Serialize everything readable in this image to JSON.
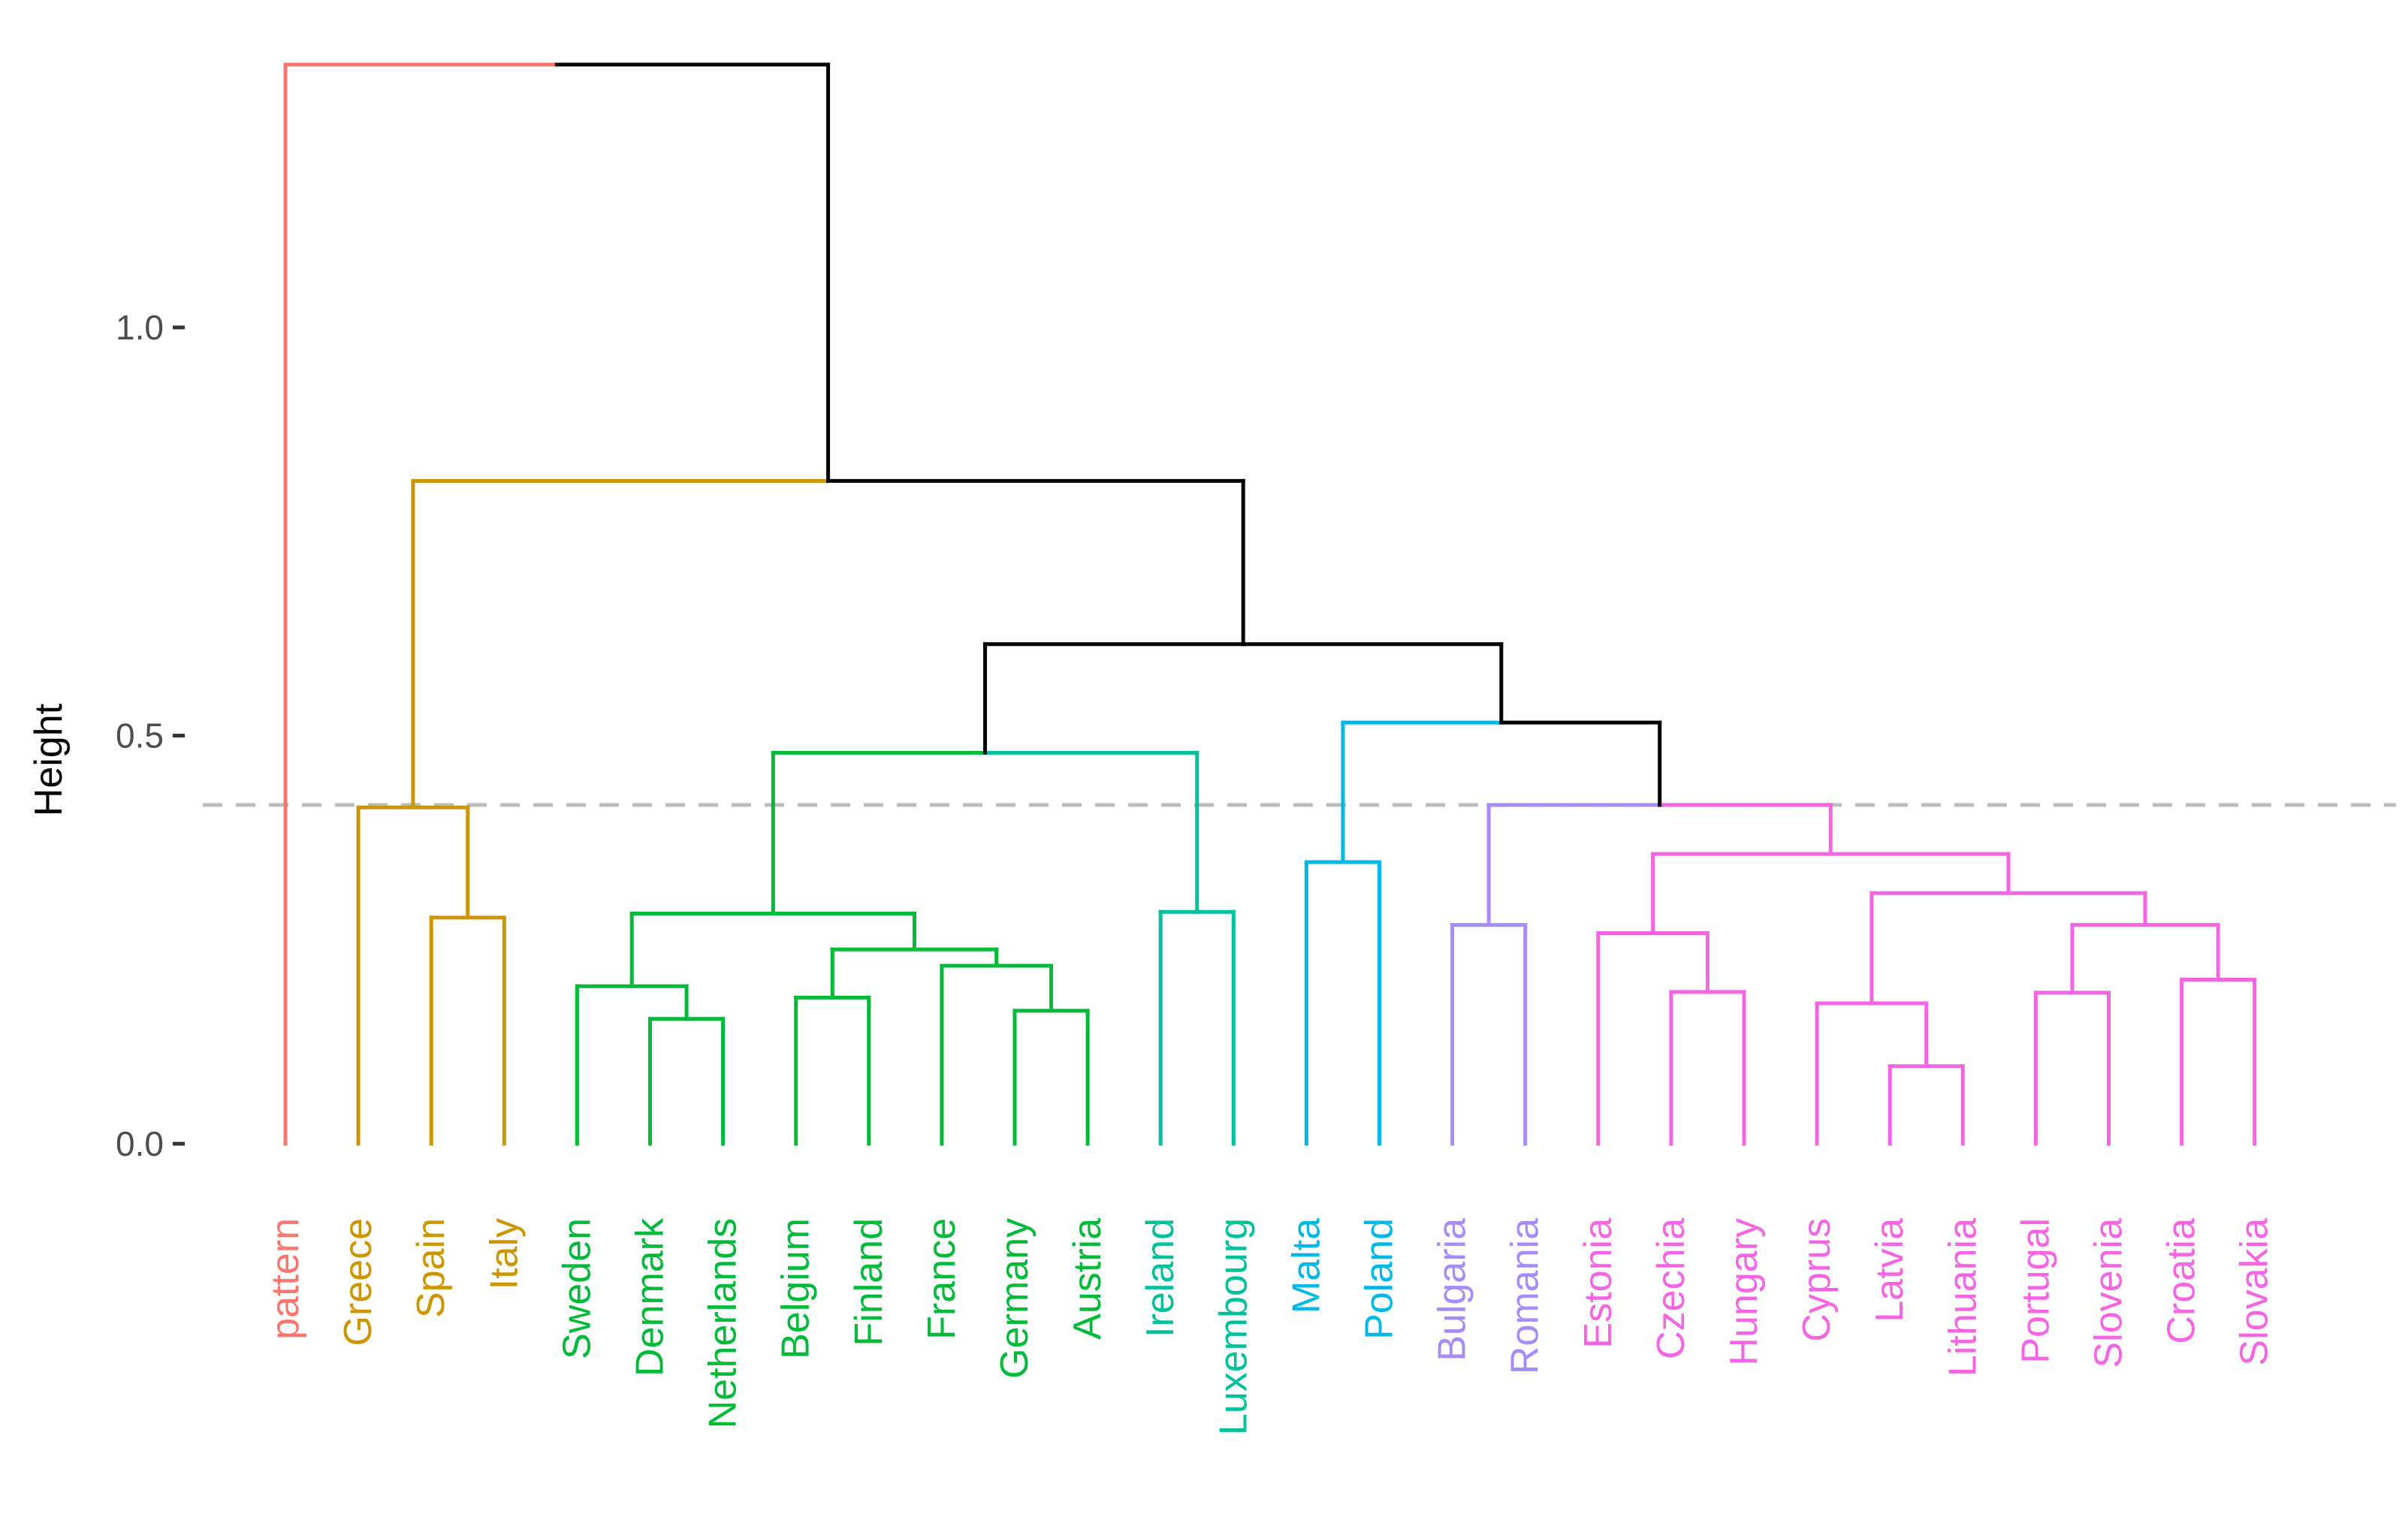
{
  "chart_data": {
    "type": "dendrogram",
    "ylabel": "Height",
    "yticks": [
      0.0,
      0.5,
      1.0
    ],
    "ytick_labels": [
      "0.0",
      "0.5",
      "1.0"
    ],
    "ylim": [
      0,
      1.33
    ],
    "cut_height": 0.415,
    "leaves": [
      {
        "label": "pattern",
        "cluster": "c1"
      },
      {
        "label": "Greece",
        "cluster": "c2"
      },
      {
        "label": "Spain",
        "cluster": "c2"
      },
      {
        "label": "Italy",
        "cluster": "c2"
      },
      {
        "label": "Sweden",
        "cluster": "c3"
      },
      {
        "label": "Denmark",
        "cluster": "c3"
      },
      {
        "label": "Netherlands",
        "cluster": "c3"
      },
      {
        "label": "Belgium",
        "cluster": "c3"
      },
      {
        "label": "Finland",
        "cluster": "c3"
      },
      {
        "label": "France",
        "cluster": "c3"
      },
      {
        "label": "Germany",
        "cluster": "c3"
      },
      {
        "label": "Austria",
        "cluster": "c3"
      },
      {
        "label": "Ireland",
        "cluster": "c4"
      },
      {
        "label": "Luxembourg",
        "cluster": "c4"
      },
      {
        "label": "Malta",
        "cluster": "c5"
      },
      {
        "label": "Poland",
        "cluster": "c5"
      },
      {
        "label": "Bulgaria",
        "cluster": "c6"
      },
      {
        "label": "Romania",
        "cluster": "c6"
      },
      {
        "label": "Estonia",
        "cluster": "c7"
      },
      {
        "label": "Czechia",
        "cluster": "c7"
      },
      {
        "label": "Hungary",
        "cluster": "c7"
      },
      {
        "label": "Cyprus",
        "cluster": "c7"
      },
      {
        "label": "Latvia",
        "cluster": "c7"
      },
      {
        "label": "Lithuania",
        "cluster": "c7"
      },
      {
        "label": "Portugal",
        "cluster": "c7"
      },
      {
        "label": "Slovenia",
        "cluster": "c7"
      },
      {
        "label": "Croatia",
        "cluster": "c7"
      },
      {
        "label": "Slovakia",
        "cluster": "c7"
      }
    ],
    "cluster_colors": {
      "c1": "#F8766D",
      "c2": "#CD9600",
      "c3": "#00BA38",
      "c4": "#00C19A",
      "c5": "#00B8E7",
      "c6": "#A78BFA",
      "c7": "#F564E3",
      "root": "#000000"
    },
    "merges": [
      {
        "id": "m1",
        "left": "Spain",
        "right": "Italy",
        "height": 0.277,
        "cluster": "c2"
      },
      {
        "id": "m2",
        "left": "Greece",
        "right": "m1",
        "height": 0.412,
        "cluster": "c2"
      },
      {
        "id": "m3",
        "left": "Denmark",
        "right": "Netherlands",
        "height": 0.153,
        "cluster": "c3"
      },
      {
        "id": "m4",
        "left": "Sweden",
        "right": "m3",
        "height": 0.193,
        "cluster": "c3"
      },
      {
        "id": "m5",
        "left": "Belgium",
        "right": "Finland",
        "height": 0.179,
        "cluster": "c3"
      },
      {
        "id": "m6",
        "left": "Germany",
        "right": "Austria",
        "height": 0.163,
        "cluster": "c3"
      },
      {
        "id": "m7",
        "left": "France",
        "right": "m6",
        "height": 0.218,
        "cluster": "c3"
      },
      {
        "id": "m8",
        "left": "m5",
        "right": "m7",
        "height": 0.238,
        "cluster": "c3"
      },
      {
        "id": "m9",
        "left": "m4",
        "right": "m8",
        "height": 0.282,
        "cluster": "c3"
      },
      {
        "id": "m10",
        "left": "Ireland",
        "right": "Luxembourg",
        "height": 0.284,
        "cluster": "c4"
      },
      {
        "id": "m11",
        "left": "m9",
        "right": "m10",
        "height": 0.479,
        "cluster": "root"
      },
      {
        "id": "m12",
        "left": "Malta",
        "right": "Poland",
        "height": 0.345,
        "cluster": "c5"
      },
      {
        "id": "m13",
        "left": "Bulgaria",
        "right": "Romania",
        "height": 0.268,
        "cluster": "c6"
      },
      {
        "id": "m14",
        "left": "Czechia",
        "right": "Hungary",
        "height": 0.186,
        "cluster": "c7"
      },
      {
        "id": "m15",
        "left": "Estonia",
        "right": "m14",
        "height": 0.258,
        "cluster": "c7"
      },
      {
        "id": "m16",
        "left": "Latvia",
        "right": "Lithuania",
        "height": 0.095,
        "cluster": "c7"
      },
      {
        "id": "m17",
        "left": "Cyprus",
        "right": "m16",
        "height": 0.172,
        "cluster": "c7"
      },
      {
        "id": "m18",
        "left": "Portugal",
        "right": "Slovenia",
        "height": 0.185,
        "cluster": "c7"
      },
      {
        "id": "m19",
        "left": "Croatia",
        "right": "Slovakia",
        "height": 0.201,
        "cluster": "c7"
      },
      {
        "id": "m20",
        "left": "m18",
        "right": "m19",
        "height": 0.268,
        "cluster": "c7"
      },
      {
        "id": "m21",
        "left": "m17",
        "right": "m20",
        "height": 0.307,
        "cluster": "c7"
      },
      {
        "id": "m22",
        "left": "m15",
        "right": "m21",
        "height": 0.355,
        "cluster": "c7"
      },
      {
        "id": "m23",
        "left": "m13",
        "right": "m22",
        "height": 0.415,
        "cluster": "root"
      },
      {
        "id": "m24",
        "left": "m12",
        "right": "m23",
        "height": 0.516,
        "cluster": "root"
      },
      {
        "id": "m25",
        "left": "m11",
        "right": "m24",
        "height": 0.612,
        "cluster": "root"
      },
      {
        "id": "m26",
        "left": "m2",
        "right": "m25",
        "height": 0.812,
        "cluster": "root"
      },
      {
        "id": "m27",
        "left": "pattern",
        "right": "m26",
        "height": 1.322,
        "cluster": "root"
      }
    ]
  }
}
